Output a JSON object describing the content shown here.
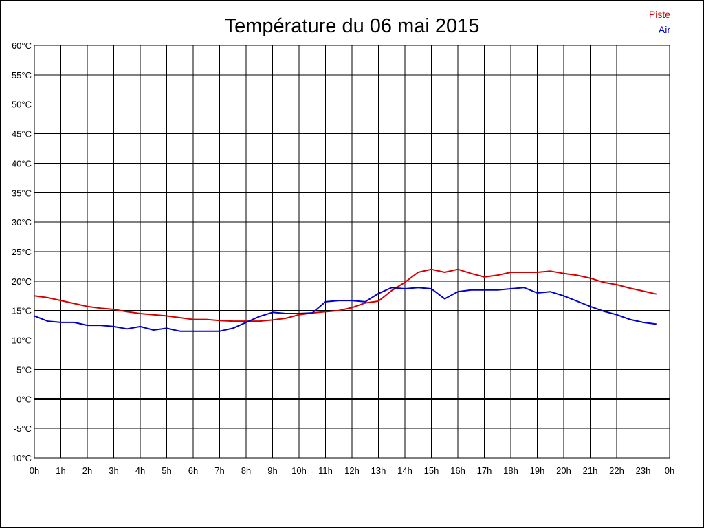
{
  "chart_data": {
    "type": "line",
    "title": "Température du 06 mai 2015",
    "x_tick_labels": [
      "0h",
      "1h",
      "2h",
      "3h",
      "4h",
      "5h",
      "6h",
      "7h",
      "8h",
      "9h",
      "10h",
      "11h",
      "12h",
      "13h",
      "14h",
      "15h",
      "16h",
      "17h",
      "18h",
      "19h",
      "20h",
      "21h",
      "22h",
      "23h",
      "0h"
    ],
    "y_tick_labels": [
      "60°C",
      "55°C",
      "50°C",
      "45°C",
      "40°C",
      "35°C",
      "30°C",
      "25°C",
      "20°C",
      "15°C",
      "10°C",
      "5°C",
      "0°C",
      "-5°C",
      "-10°C"
    ],
    "xlim": [
      0,
      24
    ],
    "ylim": [
      -10,
      60
    ],
    "grid": true,
    "legend_position": "top-right",
    "zero_line": true,
    "series": [
      {
        "name": "Piste",
        "color": "#d40000",
        "x": [
          0,
          0.5,
          1,
          1.5,
          2,
          2.5,
          3,
          3.5,
          4,
          4.5,
          5,
          5.5,
          6,
          6.5,
          7,
          7.5,
          8,
          8.5,
          9,
          9.5,
          10,
          10.5,
          11,
          11.5,
          12,
          12.5,
          13,
          13.5,
          14,
          14.5,
          15,
          15.5,
          16,
          16.5,
          17,
          17.5,
          18,
          18.5,
          19,
          19.5,
          20,
          20.5,
          21,
          21.5,
          22,
          22.5,
          23,
          23.5
        ],
        "values": [
          17.5,
          17.2,
          16.7,
          16.2,
          15.7,
          15.4,
          15.2,
          14.8,
          14.5,
          14.3,
          14.1,
          13.8,
          13.5,
          13.5,
          13.3,
          13.2,
          13.2,
          13.2,
          13.4,
          13.7,
          14.3,
          14.6,
          14.8,
          15.0,
          15.5,
          16.3,
          16.6,
          18.4,
          19.8,
          21.5,
          22.0,
          21.5,
          22.0,
          21.3,
          20.7,
          21.0,
          21.5,
          21.5,
          21.5,
          21.7,
          21.3,
          21.0,
          20.5,
          19.8,
          19.4,
          18.8,
          18.3,
          17.8
        ]
      },
      {
        "name": "Air",
        "color": "#0000c8",
        "x": [
          0,
          0.5,
          1,
          1.5,
          2,
          2.5,
          3,
          3.5,
          4,
          4.5,
          5,
          5.5,
          6,
          6.5,
          7,
          7.5,
          8,
          8.5,
          9,
          9.5,
          10,
          10.5,
          11,
          11.5,
          12,
          12.5,
          13,
          13.5,
          14,
          14.5,
          15,
          15.5,
          16,
          16.5,
          17,
          17.5,
          18,
          18.5,
          19,
          19.5,
          20,
          20.5,
          21,
          21.5,
          22,
          22.5,
          23,
          23.5
        ],
        "values": [
          14.1,
          13.2,
          13.0,
          13.0,
          12.5,
          12.5,
          12.3,
          11.9,
          12.3,
          11.7,
          12.0,
          11.5,
          11.5,
          11.5,
          11.5,
          12.0,
          13.0,
          14.0,
          14.7,
          14.5,
          14.5,
          14.6,
          16.5,
          16.7,
          16.7,
          16.5,
          17.9,
          18.9,
          18.7,
          18.9,
          18.7,
          17.0,
          18.2,
          18.5,
          18.5,
          18.5,
          18.7,
          18.9,
          18.0,
          18.2,
          17.5,
          16.6,
          15.7,
          14.9,
          14.3,
          13.5,
          13.0,
          12.7
        ]
      }
    ]
  }
}
